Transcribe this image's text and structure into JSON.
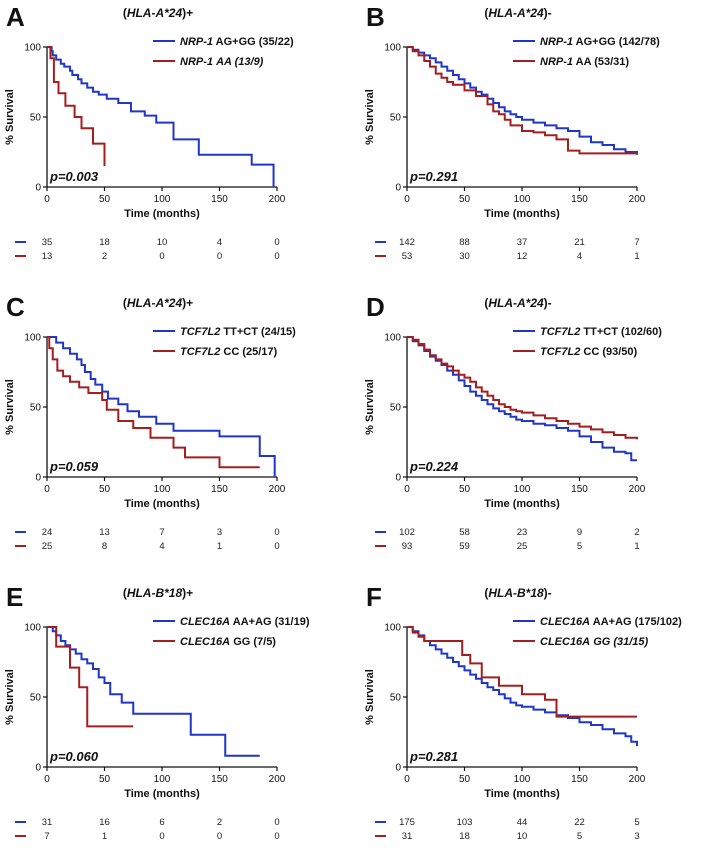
{
  "colors": {
    "blue": "#1f36c7",
    "red": "#a41e1e",
    "axis": "#111111"
  },
  "chart_data": [
    {
      "type": "line",
      "panel_label": "A",
      "title": {
        "gene": "HLA-A*24",
        "sign": ")+"
      },
      "xlabel": "Time (months)",
      "ylabel": "% Survival",
      "xlim": [
        0,
        200
      ],
      "ylim": [
        0,
        100
      ],
      "xticks": [
        "0",
        "50",
        "100",
        "150",
        "200"
      ],
      "yticks": [
        "0",
        "50",
        "100"
      ],
      "p_value": "p=0.003",
      "series": [
        {
          "name": "NRP-1 AG+GG (35/22)",
          "gene": "NRP-1",
          "group": "AG+GG (35/22)",
          "group_italic": false,
          "color": "#1f36c7",
          "x": [
            0,
            4,
            5,
            8,
            12,
            15,
            20,
            22,
            27,
            30,
            35,
            40,
            45,
            52,
            62,
            73,
            85,
            95,
            110,
            132,
            178,
            197
          ],
          "y": [
            100,
            97,
            94,
            91,
            88,
            86,
            83,
            80,
            77,
            74,
            71,
            68,
            66,
            63,
            60,
            54,
            51,
            46,
            34,
            23,
            16,
            0
          ]
        },
        {
          "name": "NRP-1 AA (13/9)",
          "gene": "NRP-1",
          "group": "AA (13/9)",
          "group_italic": true,
          "color": "#a41e1e",
          "x": [
            0,
            3,
            6,
            10,
            16,
            24,
            30,
            40,
            50
          ],
          "y": [
            100,
            92,
            75,
            67,
            58,
            50,
            42,
            31,
            15
          ]
        }
      ],
      "risk_table": {
        "blue": [
          "35",
          "18",
          "10",
          "4",
          "0"
        ],
        "red": [
          "13",
          "2",
          "0",
          "0",
          "0"
        ]
      }
    },
    {
      "type": "line",
      "panel_label": "B",
      "title": {
        "gene": "HLA-A*24",
        "sign": ")-"
      },
      "xlabel": "Time (months)",
      "ylabel": "% Survival",
      "xlim": [
        0,
        200
      ],
      "ylim": [
        0,
        100
      ],
      "xticks": [
        "0",
        "50",
        "100",
        "150",
        "200"
      ],
      "yticks": [
        "0",
        "50",
        "100"
      ],
      "p_value": "p=0.291",
      "series": [
        {
          "name": "NRP-1 AG+GG (142/78)",
          "gene": "NRP-1",
          "group": "AG+GG (142/78)",
          "group_italic": false,
          "color": "#1f36c7",
          "x": [
            0,
            5,
            10,
            15,
            20,
            25,
            30,
            35,
            40,
            45,
            50,
            55,
            60,
            65,
            70,
            75,
            80,
            85,
            90,
            95,
            100,
            110,
            120,
            130,
            140,
            150,
            160,
            170,
            180,
            190,
            200
          ],
          "y": [
            100,
            98,
            96,
            94,
            92,
            89,
            86,
            83,
            80,
            77,
            74,
            71,
            68,
            66,
            63,
            60,
            57,
            54,
            52,
            50,
            48,
            46,
            44,
            42,
            40,
            36,
            32,
            30,
            27,
            25,
            23
          ]
        },
        {
          "name": "NRP-1 AA (53/31)",
          "gene": "NRP-1",
          "group": "AA (53/31)",
          "group_italic": false,
          "color": "#a41e1e",
          "x": [
            0,
            5,
            10,
            15,
            20,
            25,
            30,
            35,
            40,
            50,
            60,
            70,
            75,
            80,
            85,
            90,
            100,
            110,
            120,
            130,
            140,
            150,
            160,
            170,
            180,
            190,
            200
          ],
          "y": [
            100,
            97,
            94,
            90,
            86,
            81,
            78,
            75,
            73,
            69,
            65,
            59,
            54,
            52,
            48,
            44,
            40,
            39,
            37,
            34,
            26,
            24,
            24,
            24,
            24,
            24,
            24
          ]
        }
      ],
      "risk_table": {
        "blue": [
          "142",
          "88",
          "37",
          "21",
          "7"
        ],
        "red": [
          "53",
          "30",
          "12",
          "4",
          "1"
        ]
      }
    },
    {
      "type": "line",
      "panel_label": "C",
      "title": {
        "gene": "HLA-A*24",
        "sign": ")+"
      },
      "xlabel": "Time (months)",
      "ylabel": "% Survival",
      "xlim": [
        0,
        200
      ],
      "ylim": [
        0,
        100
      ],
      "xticks": [
        "0",
        "50",
        "100",
        "150",
        "200"
      ],
      "yticks": [
        "0",
        "50",
        "100"
      ],
      "p_value": "p=0.059",
      "series": [
        {
          "name": "TCF7L2 TT+CT (24/15)",
          "gene": "TCF7L2",
          "group": "TT+CT (24/15)",
          "group_italic": false,
          "color": "#1f36c7",
          "x": [
            0,
            8,
            14,
            20,
            26,
            30,
            33,
            38,
            42,
            48,
            53,
            62,
            70,
            80,
            95,
            110,
            150,
            185,
            198
          ],
          "y": [
            100,
            96,
            92,
            88,
            84,
            80,
            75,
            70,
            66,
            61,
            56,
            52,
            47,
            43,
            38,
            33,
            29,
            15,
            0
          ]
        },
        {
          "name": "TCF7L2 CC (25/17)",
          "gene": "TCF7L2",
          "group": "CC (25/17)",
          "group_italic": false,
          "color": "#a41e1e",
          "x": [
            0,
            2,
            5,
            9,
            14,
            20,
            28,
            36,
            48,
            52,
            62,
            75,
            90,
            110,
            120,
            150,
            185
          ],
          "y": [
            100,
            92,
            84,
            76,
            72,
            68,
            64,
            60,
            55,
            48,
            40,
            35,
            28,
            21,
            14,
            7,
            7
          ]
        }
      ],
      "risk_table": {
        "blue": [
          "24",
          "13",
          "7",
          "3",
          "0"
        ],
        "red": [
          "25",
          "8",
          "4",
          "1",
          "0"
        ]
      }
    },
    {
      "type": "line",
      "panel_label": "D",
      "title": {
        "gene": "HLA-A*24",
        "sign": ")-"
      },
      "xlabel": "Time (months)",
      "ylabel": "% Survival",
      "xlim": [
        0,
        200
      ],
      "ylim": [
        0,
        100
      ],
      "xticks": [
        "0",
        "50",
        "100",
        "150",
        "200"
      ],
      "yticks": [
        "0",
        "50",
        "100"
      ],
      "p_value": "p=0.224",
      "series": [
        {
          "name": "TCF7L2 TT+CT (102/60)",
          "gene": "TCF7L2",
          "group": "TT+CT (102/60)",
          "group_italic": false,
          "color": "#1f36c7",
          "x": [
            0,
            5,
            10,
            15,
            20,
            25,
            30,
            35,
            40,
            45,
            50,
            55,
            60,
            65,
            70,
            75,
            80,
            85,
            90,
            95,
            100,
            110,
            120,
            130,
            140,
            150,
            160,
            170,
            180,
            190,
            195,
            200
          ],
          "y": [
            100,
            97,
            94,
            90,
            86,
            83,
            80,
            76,
            73,
            69,
            65,
            61,
            58,
            55,
            52,
            49,
            47,
            45,
            43,
            41,
            40,
            38,
            37,
            35,
            33,
            29,
            25,
            21,
            18,
            17,
            12,
            12
          ]
        },
        {
          "name": "TCF7L2 CC (93/50)",
          "gene": "TCF7L2",
          "group": "CC (93/50)",
          "group_italic": false,
          "color": "#a41e1e",
          "x": [
            0,
            5,
            10,
            15,
            20,
            25,
            30,
            35,
            40,
            45,
            50,
            55,
            60,
            65,
            70,
            75,
            80,
            85,
            90,
            95,
            100,
            110,
            120,
            130,
            140,
            150,
            160,
            170,
            180,
            190,
            200
          ],
          "y": [
            100,
            98,
            95,
            91,
            87,
            84,
            81,
            79,
            76,
            73,
            71,
            68,
            64,
            61,
            58,
            55,
            52,
            50,
            48,
            47,
            46,
            44,
            42,
            40,
            38,
            36,
            34,
            32,
            30,
            28,
            27
          ]
        }
      ],
      "risk_table": {
        "blue": [
          "102",
          "58",
          "23",
          "9",
          "2"
        ],
        "red": [
          "93",
          "59",
          "25",
          "5",
          "1"
        ]
      }
    },
    {
      "type": "line",
      "panel_label": "E",
      "title": {
        "gene": "HLA-B*18",
        "sign": ")+"
      },
      "xlabel": "Time (months)",
      "ylabel": "% Survival",
      "xlim": [
        0,
        200
      ],
      "ylim": [
        0,
        100
      ],
      "xticks": [
        "0",
        "50",
        "100",
        "150",
        "200"
      ],
      "yticks": [
        "0",
        "50",
        "100"
      ],
      "p_value": "p=0.060",
      "series": [
        {
          "name": "CLEC16A AA+AG (31/19)",
          "gene": "CLEC16A",
          "group": "AA+AG (31/19)",
          "group_italic": false,
          "color": "#1f36c7",
          "x": [
            0,
            5,
            8,
            12,
            16,
            20,
            25,
            30,
            35,
            40,
            45,
            50,
            55,
            65,
            75,
            100,
            125,
            155,
            185
          ],
          "y": [
            100,
            97,
            94,
            90,
            87,
            84,
            81,
            77,
            74,
            70,
            64,
            60,
            52,
            46,
            38,
            38,
            23,
            8,
            8
          ]
        },
        {
          "name": "CLEC16A GG (7/5)",
          "gene": "CLEC16A",
          "group": "GG (7/5)",
          "group_italic": false,
          "color": "#a41e1e",
          "x": [
            0,
            8,
            20,
            28,
            35,
            75
          ],
          "y": [
            100,
            86,
            71,
            57,
            29,
            29
          ]
        }
      ],
      "risk_table": {
        "blue": [
          "31",
          "16",
          "6",
          "2",
          "0"
        ],
        "red": [
          "7",
          "1",
          "0",
          "0",
          "0"
        ]
      }
    },
    {
      "type": "line",
      "panel_label": "F",
      "title": {
        "gene": "HLA-B*18",
        "sign": ")-"
      },
      "xlabel": "Time (months)",
      "ylabel": "% Survival",
      "xlim": [
        0,
        200
      ],
      "ylim": [
        0,
        100
      ],
      "xticks": [
        "0",
        "50",
        "100",
        "150",
        "200"
      ],
      "yticks": [
        "0",
        "50",
        "100"
      ],
      "p_value": "p=0.281",
      "series": [
        {
          "name": "CLEC16A AA+AG (175/102)",
          "gene": "CLEC16A",
          "group": "AA+AG (175/102)",
          "group_italic": false,
          "color": "#1f36c7",
          "x": [
            0,
            5,
            10,
            15,
            20,
            25,
            30,
            35,
            40,
            45,
            50,
            55,
            60,
            65,
            70,
            75,
            80,
            85,
            90,
            95,
            100,
            110,
            120,
            130,
            140,
            150,
            160,
            170,
            180,
            190,
            195,
            200
          ],
          "y": [
            100,
            97,
            94,
            90,
            87,
            84,
            81,
            78,
            75,
            72,
            69,
            66,
            63,
            60,
            57,
            55,
            52,
            49,
            46,
            44,
            43,
            41,
            39,
            37,
            35,
            32,
            30,
            27,
            24,
            22,
            18,
            15
          ]
        },
        {
          "name": "CLEC16A GG (31/15)",
          "gene": "CLEC16A",
          "group": "GG (31/15)",
          "group_italic": true,
          "color": "#a41e1e",
          "x": [
            0,
            5,
            10,
            15,
            40,
            48,
            55,
            65,
            80,
            100,
            120,
            130,
            200
          ],
          "y": [
            100,
            96,
            93,
            90,
            90,
            80,
            74,
            64,
            58,
            52,
            48,
            36,
            36
          ]
        }
      ],
      "risk_table": {
        "blue": [
          "175",
          "103",
          "44",
          "22",
          "5"
        ],
        "red": [
          "31",
          "18",
          "10",
          "5",
          "3"
        ]
      }
    }
  ]
}
